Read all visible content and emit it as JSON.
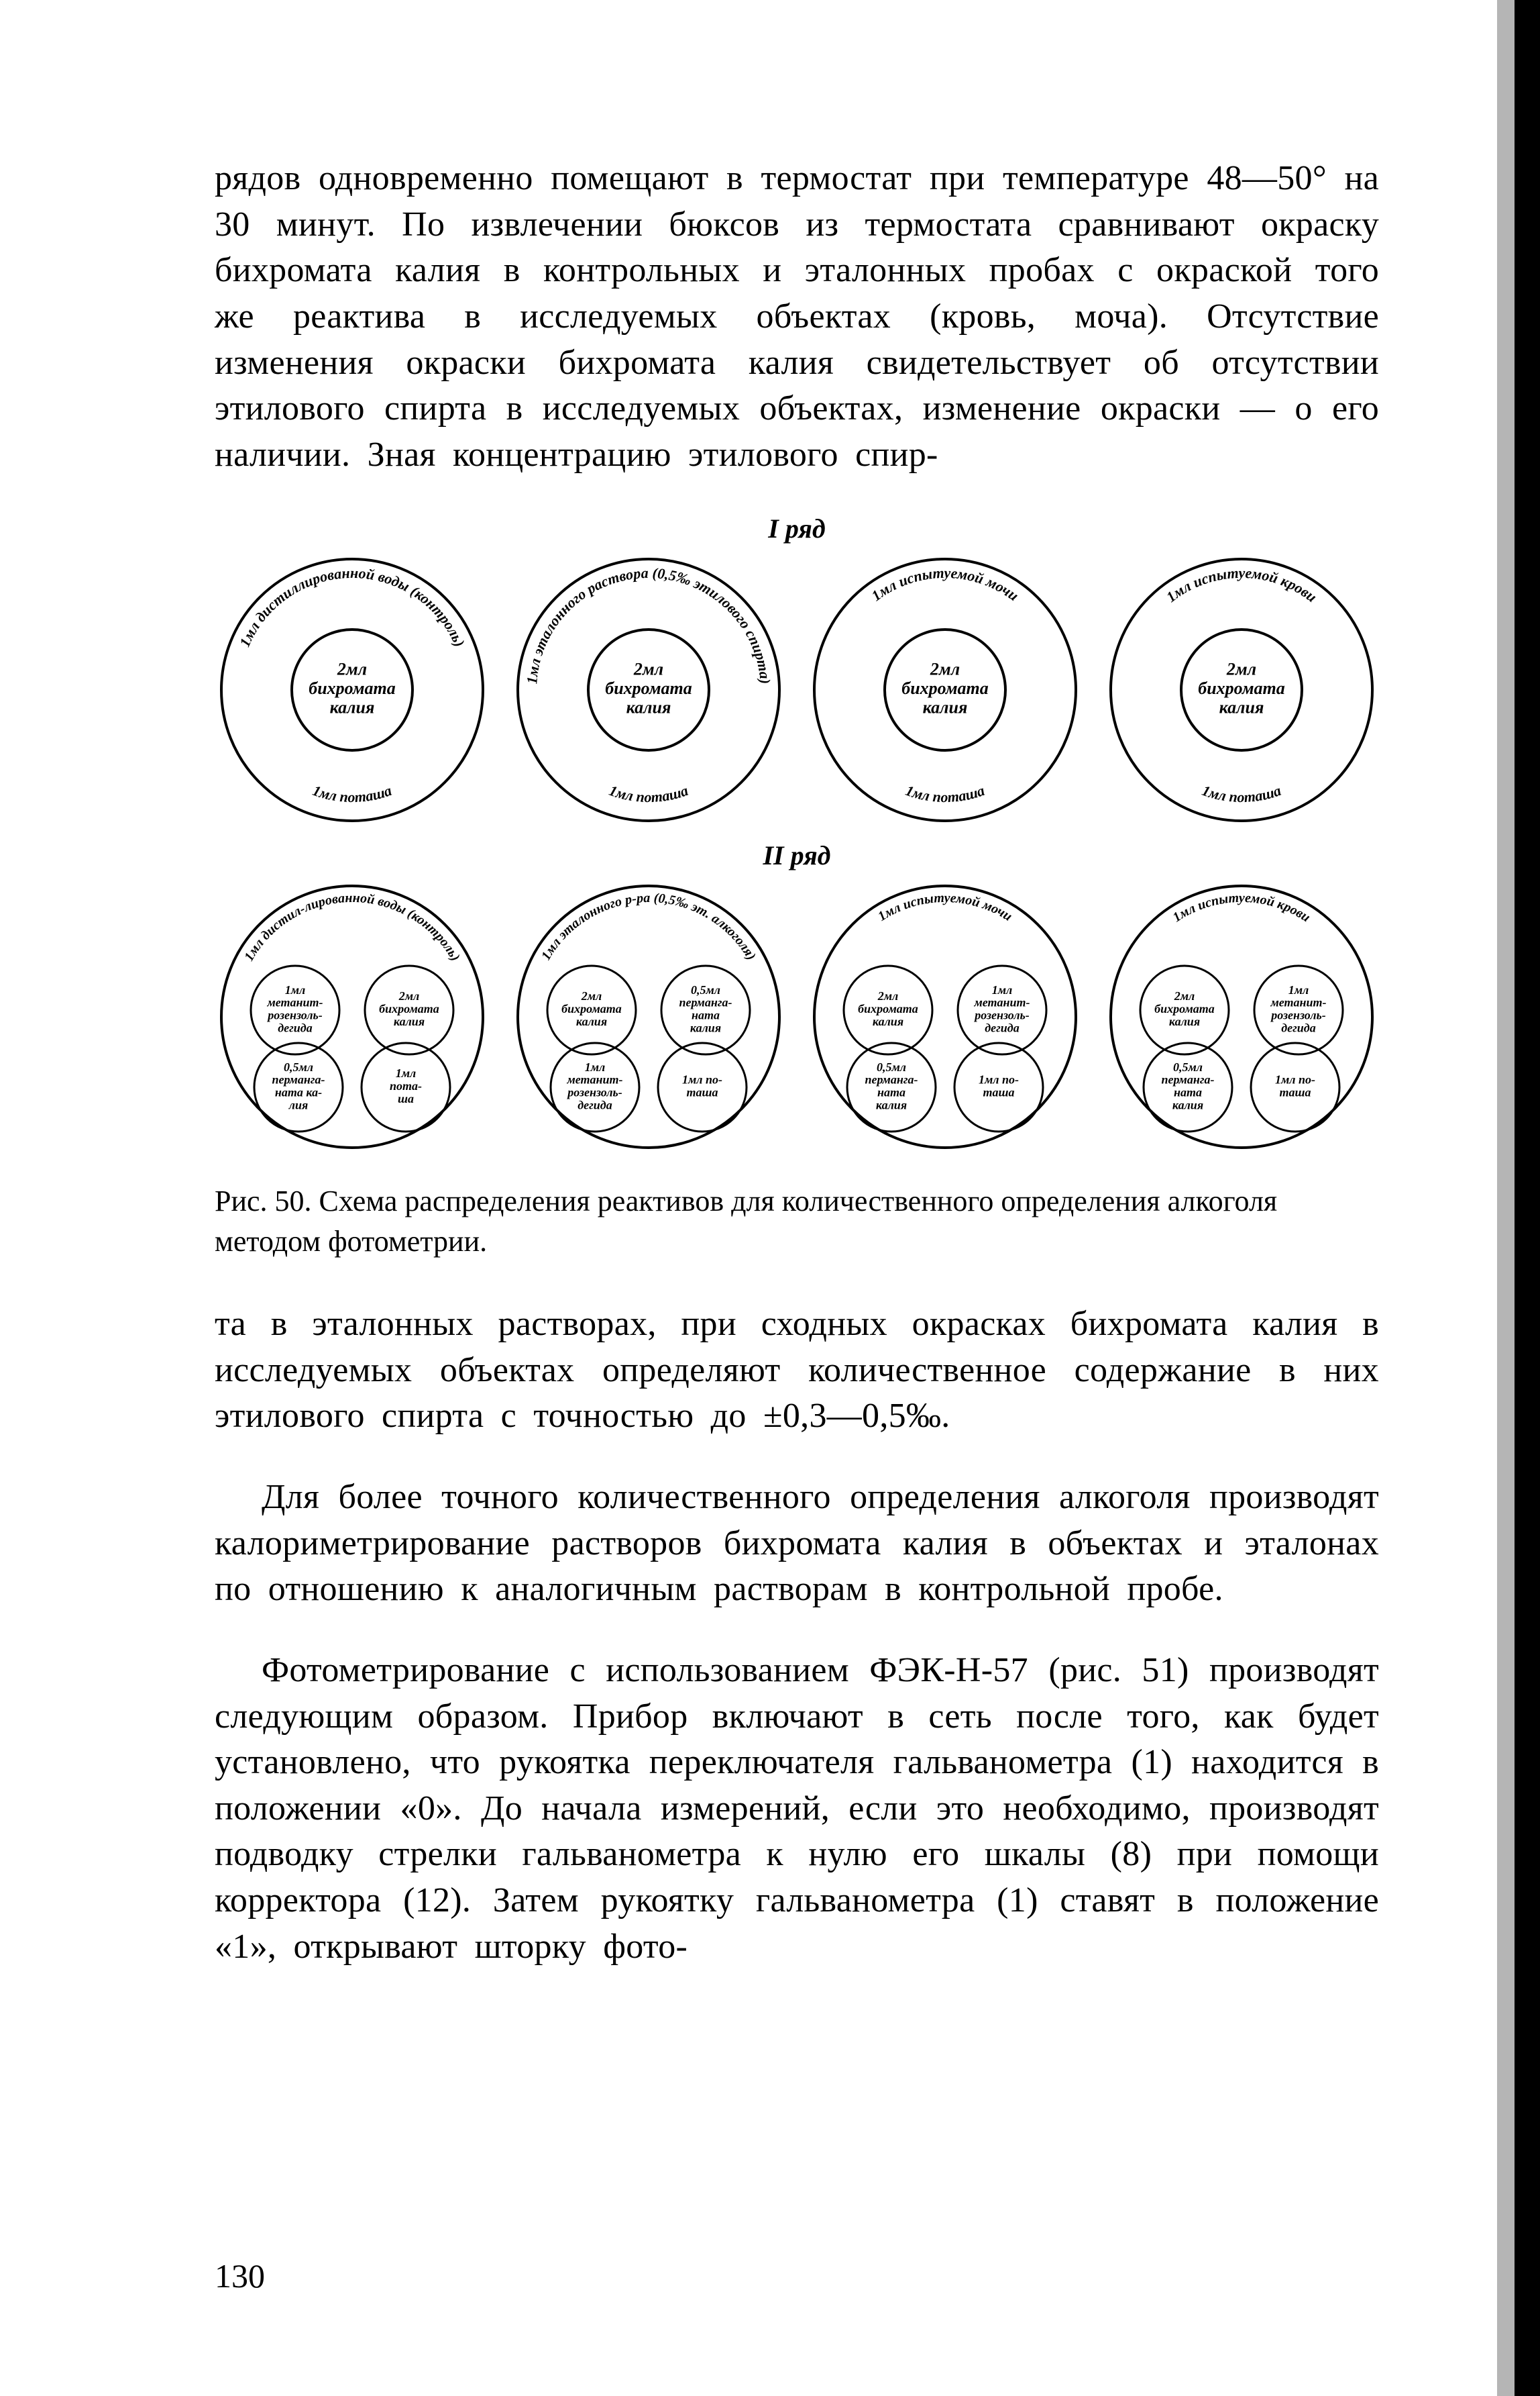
{
  "paragraphs": {
    "p1": "рядов одновременно помещают в термостат при температуре 48—50° на 30 минут. По извлечении бюксов из термостата сравнивают окраску бихромата калия в контрольных и эталонных пробах с окраской того же реактива в исследуемых объектах (кровь, моча). Отсутствие изменения окраски бихромата калия свидетельствует об отсутствии этилового спирта в исследуемых объектах, изменение окраски — о его наличии. Зная концентрацию этилового спир-",
    "p2": "та в эталонных растворах, при сходных окрасках бихромата калия в исследуемых объектах определяют количественное содержание в них этилового спирта с точностью до ±0,3—0,5‰.",
    "p3": "Для более точного количественного определения алкоголя производят калориметрирование растворов бихромата калия в объектах и эталонах по отношению к аналогичным растворам в контрольной пробе.",
    "p4": "Фотометрирование с использованием ФЭК-Н-57 (рис. 51) производят следующим образом. Прибор включают в сеть после того, как будет установлено, что рукоятка переключателя гальванометра (1) находится в положении «0». До начала измерений, если это необходимо, производят подводку стрелки гальванометра к нулю его шкалы (8) при помощи корректора (12). Затем рукоятку гальванометра (1) ставят в положение «1», открывают шторку фото-"
  },
  "figure": {
    "row1_label": "I ряд",
    "row2_label": "II ряд",
    "caption": "Рис. 50. Схема распределения реактивов для количественного определения алкоголя методом фотометрии.",
    "row1": [
      {
        "outer_arc_top": "1мл дистиллированной воды (контроль)",
        "outer_arc_bottom": "1мл поташа",
        "inner_lines": [
          "2мл",
          "бихромата",
          "калия"
        ]
      },
      {
        "outer_arc_top": "1мл эталонного раствора (0,5‰ этилового спирта)",
        "outer_arc_bottom": "1мл поташа",
        "inner_lines": [
          "2мл",
          "бихромата",
          "калия"
        ]
      },
      {
        "outer_arc_top": "1мл испытуемой мочи",
        "outer_arc_bottom": "1мл поташа",
        "inner_lines": [
          "2мл",
          "бихромата",
          "калия"
        ]
      },
      {
        "outer_arc_top": "1мл испытуемой крови",
        "outer_arc_bottom": "1мл поташа",
        "inner_lines": [
          "2мл",
          "бихромата",
          "калия"
        ]
      }
    ],
    "row2": [
      {
        "top_arc": "1мл дистил-лированной воды (контроль)",
        "bubbles": [
          {
            "lines": [
              "1мл",
              "метанит-",
              "розензоль-",
              "дегида"
            ]
          },
          {
            "lines": [
              "2мл",
              "бихромата",
              "калия"
            ]
          },
          {
            "lines": [
              "0,5мл",
              "перманга-",
              "ната ка-",
              "лия"
            ]
          },
          {
            "lines": [
              "1мл",
              "пота-",
              "ша"
            ]
          }
        ]
      },
      {
        "top_arc": "1мл эталонного р-ра (0,5‰ эт. алкоголя)",
        "bubbles": [
          {
            "lines": [
              "2мл",
              "бихромата",
              "калия"
            ]
          },
          {
            "lines": [
              "0,5мл",
              "перманга-",
              "ната",
              "калия"
            ]
          },
          {
            "lines": [
              "1мл",
              "метанит-",
              "розензоль-",
              "дегида"
            ]
          },
          {
            "lines": [
              "1мл по-",
              "таша"
            ]
          }
        ]
      },
      {
        "top_arc": "1мл испытуемой мочи",
        "bubbles": [
          {
            "lines": [
              "2мл",
              "бихромата",
              "калия"
            ]
          },
          {
            "lines": [
              "1мл",
              "метанит-",
              "розензоль-",
              "дегида"
            ]
          },
          {
            "lines": [
              "0,5мл",
              "перманга-",
              "ната",
              "калия"
            ]
          },
          {
            "lines": [
              "1мл по-",
              "таша"
            ]
          }
        ]
      },
      {
        "top_arc": "1мл испытуемой крови",
        "bubbles": [
          {
            "lines": [
              "2мл",
              "бихромата",
              "калия"
            ]
          },
          {
            "lines": [
              "1мл",
              "метанит-",
              "розензоль-",
              "дегида"
            ]
          },
          {
            "lines": [
              "0,5мл",
              "перманга-",
              "ната",
              "калия"
            ]
          },
          {
            "lines": [
              "1мл по-",
              "таша"
            ]
          }
        ]
      }
    ]
  },
  "page_number": "130",
  "colors": {
    "text": "#000000",
    "background": "#ffffff",
    "stroke": "#000000"
  },
  "diagram_style": {
    "outer_radius": 195,
    "inner_radius": 90,
    "stroke_width": 4,
    "font_size_arc": 22,
    "font_size_inner": 26,
    "row2_main_radius": 195,
    "row2_bubble_radius": 66,
    "row2_bubble_stroke": 3,
    "row2_font_size": 18,
    "cell_size": 410
  }
}
